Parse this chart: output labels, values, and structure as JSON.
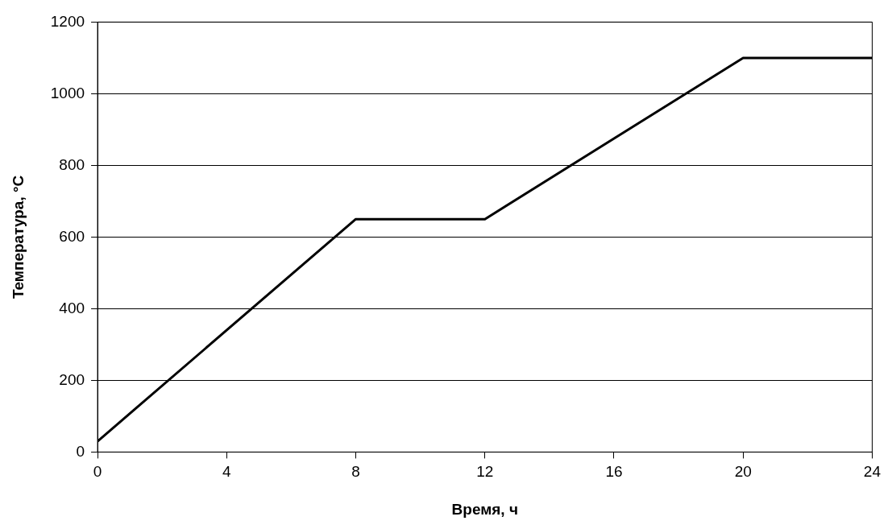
{
  "chart_data": {
    "type": "line",
    "xlabel": "Время, ч",
    "ylabel": "Температура, °C",
    "x": [
      0,
      8,
      12,
      20,
      24
    ],
    "series": [
      {
        "color": "#000000",
        "values": [
          30,
          650,
          650,
          1100,
          1100
        ]
      }
    ],
    "xlim": [
      0,
      24
    ],
    "xticks": [
      0,
      4,
      8,
      12,
      16,
      20,
      24
    ],
    "ylim": [
      0,
      1200
    ],
    "yticks": [
      0,
      200,
      400,
      600,
      800,
      1000,
      1200
    ],
    "grid": "y",
    "legend": false,
    "marker": "none",
    "line_style": "solid"
  }
}
